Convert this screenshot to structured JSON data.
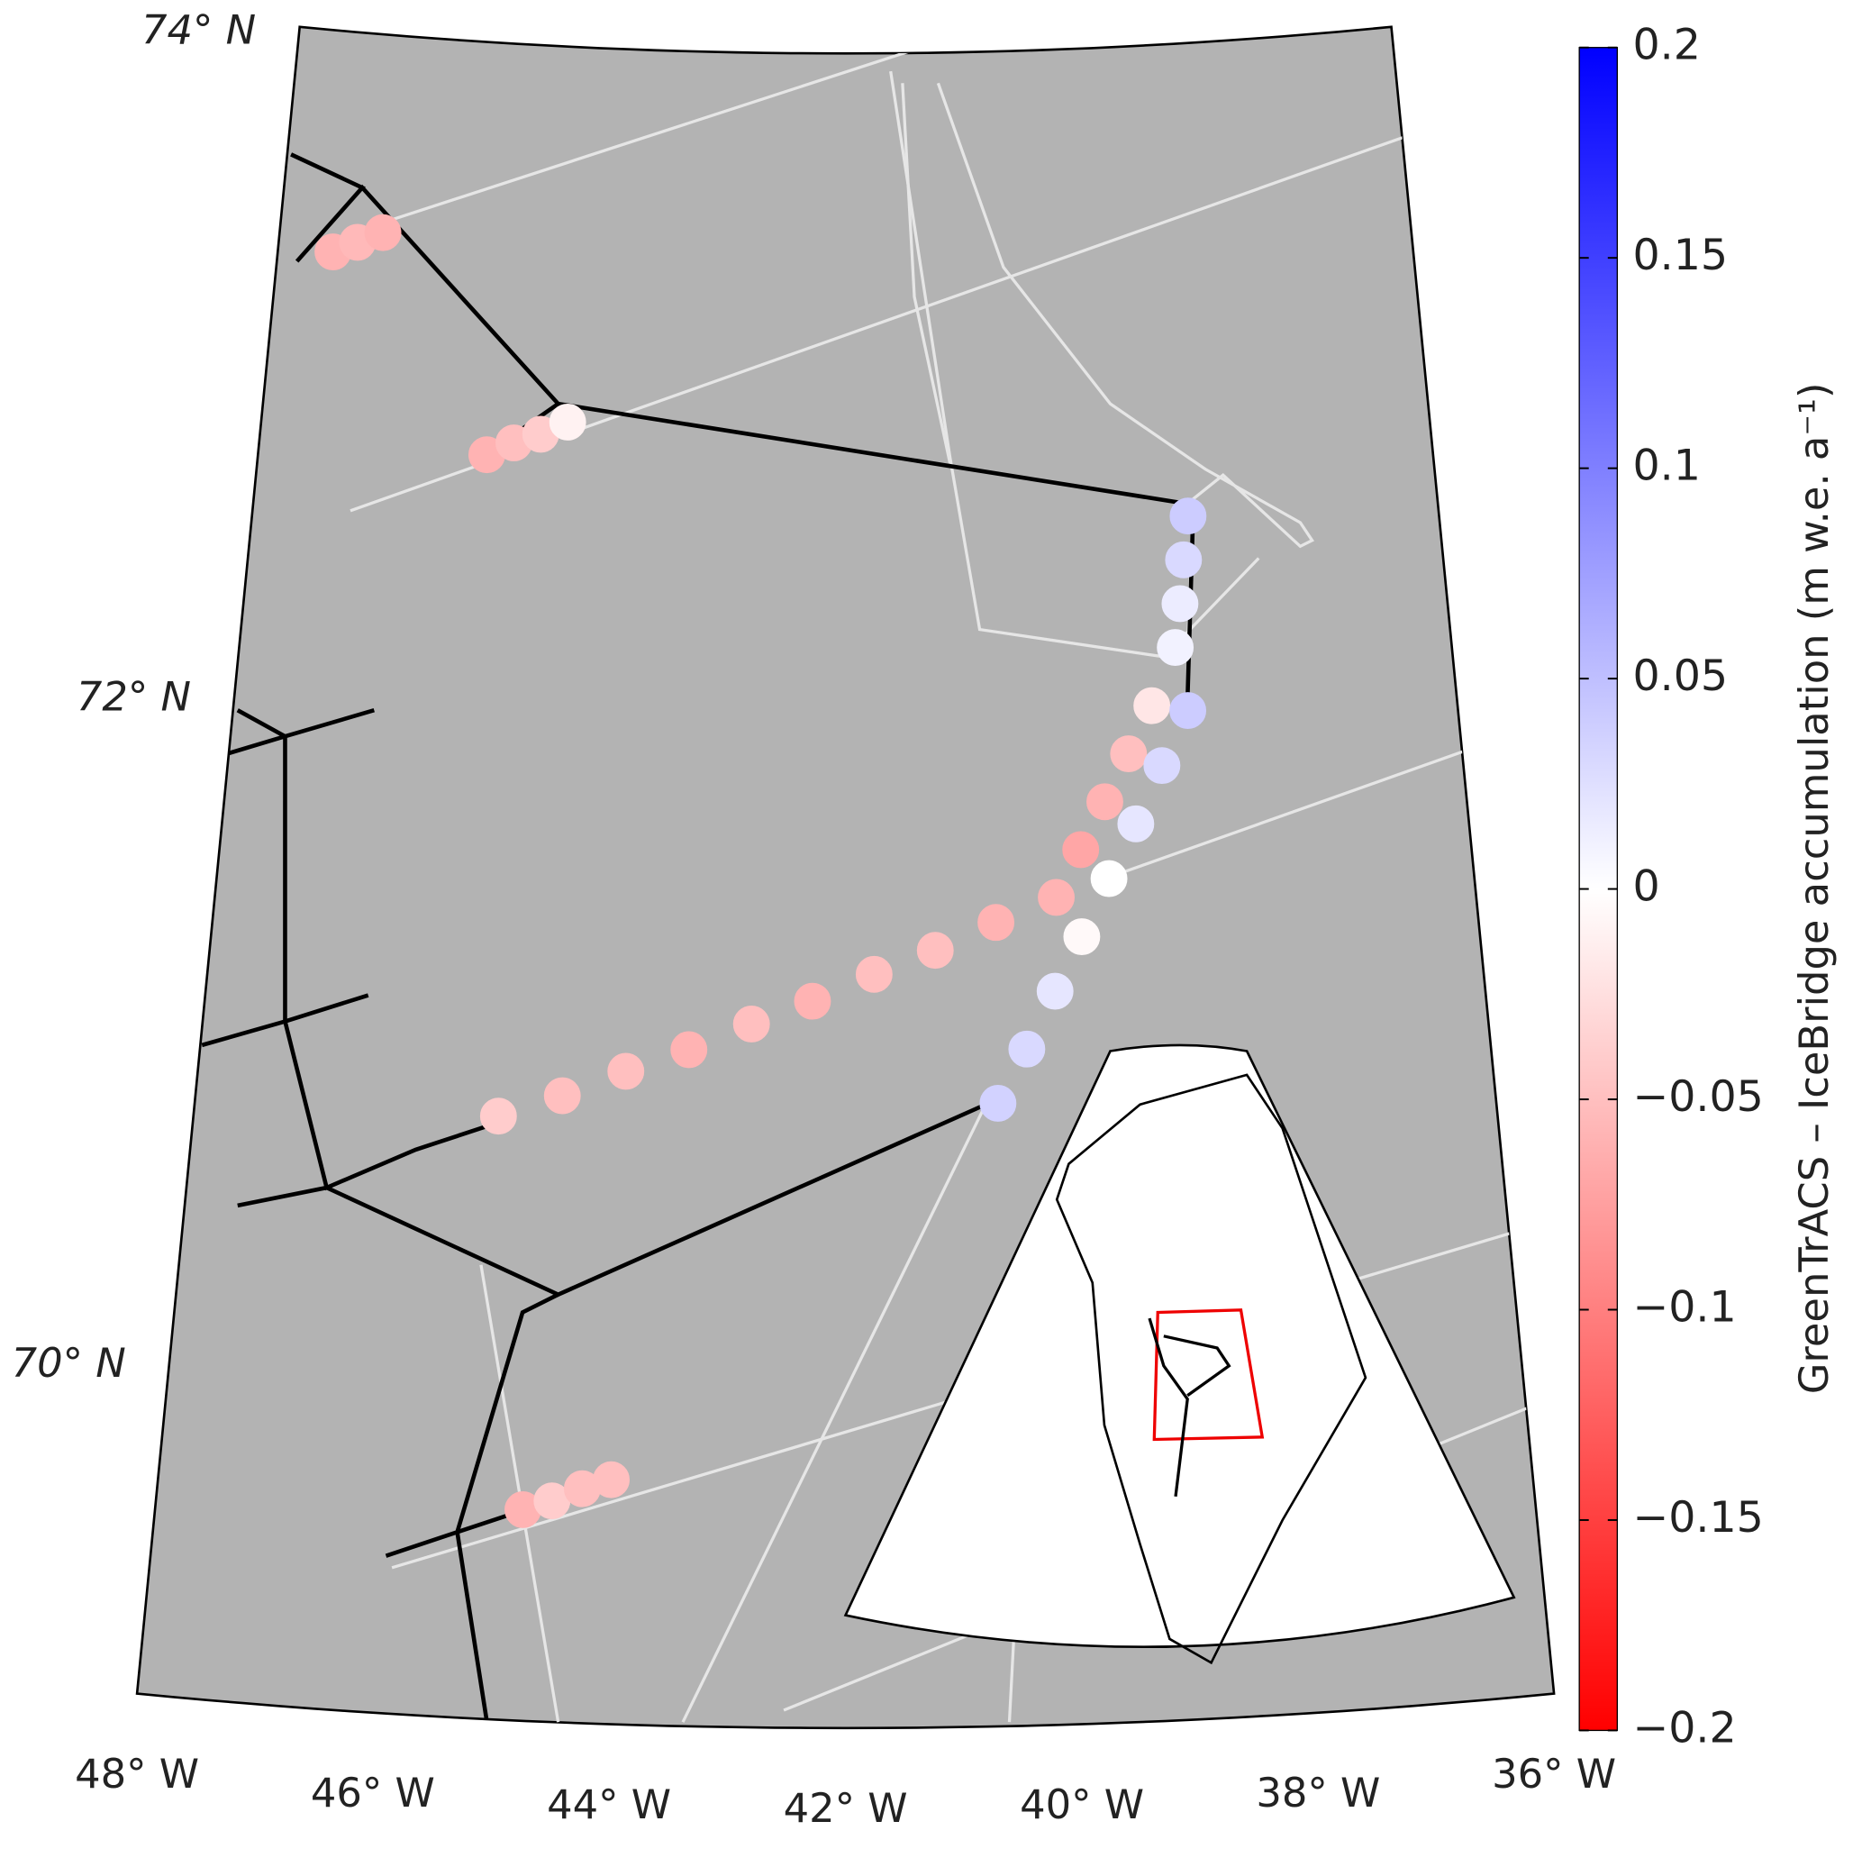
{
  "chart_data": {
    "type": "map",
    "lonlim": [
      -48,
      -36
    ],
    "latlim": [
      69,
      74
    ],
    "lonticks": [
      {
        "value": -48,
        "label": "48° W"
      },
      {
        "value": -46,
        "label": "46° W"
      },
      {
        "value": -44,
        "label": "44° W"
      },
      {
        "value": -42,
        "label": "42° W"
      },
      {
        "value": -40,
        "label": "40° W"
      },
      {
        "value": -38,
        "label": "38° W"
      },
      {
        "value": -36,
        "label": "36° W"
      }
    ],
    "latticks": [
      {
        "value": 70,
        "label": "70° N"
      },
      {
        "value": 72,
        "label": "72° N"
      },
      {
        "value": 74,
        "label": "74° N"
      }
    ],
    "colorbar": {
      "label": "GreenTrACS – IceBridge accumulation (m w.e. a⁻¹)",
      "clim": [
        -0.2,
        0.2
      ],
      "ticks": [
        {
          "value": -0.2,
          "label": "−0.2"
        },
        {
          "value": -0.15,
          "label": "−0.15"
        },
        {
          "value": -0.1,
          "label": "−0.1"
        },
        {
          "value": -0.05,
          "label": "−0.05"
        },
        0,
        0.05,
        0.1,
        0.15,
        0.2
      ],
      "colors": [
        "#ff0000",
        "#ffffff",
        "#0000ff"
      ]
    },
    "tracks": [
      {
        "lon": [
          -47.42,
          -47.17,
          -46.91
        ],
        "lat": [
          73.34,
          73.375,
          73.41
        ],
        "values": [
          -0.06,
          -0.055,
          -0.06
        ]
      },
      {
        "lon": [
          -45.67,
          -45.4,
          -45.13,
          -44.86
        ],
        "lat": [
          72.77,
          72.81,
          72.84,
          72.88
        ],
        "values": [
          -0.06,
          -0.05,
          -0.04,
          -0.01
        ]
      },
      {
        "lon": [
          -38.53,
          -38.6,
          -38.66,
          -38.73
        ],
        "lat": [
          72.59,
          72.46,
          72.33,
          72.2
        ],
        "values": [
          0.04,
          0.03,
          0.015,
          0.01
        ]
      },
      {
        "lon": [
          -45.2,
          -44.62,
          -44.04,
          -43.46,
          -42.88,
          -42.31,
          -41.73,
          -41.15,
          -40.57,
          -39.99,
          -39.74,
          -39.49,
          -39.24,
          -38.99
        ],
        "lat": [
          70.8,
          70.87,
          70.95,
          71.02,
          71.1,
          71.17,
          71.25,
          71.32,
          71.4,
          71.47,
          71.61,
          71.75,
          71.89,
          72.03
        ],
        "values": [
          -0.04,
          -0.05,
          -0.05,
          -0.06,
          -0.05,
          -0.06,
          -0.05,
          -0.05,
          -0.06,
          -0.06,
          -0.07,
          -0.06,
          -0.05,
          -0.02
        ]
      },
      {
        "lon": [
          -38.64,
          -38.92,
          -39.2,
          -39.48,
          -39.76,
          -40.03,
          -40.31,
          -40.59
        ],
        "lat": [
          72.01,
          71.85,
          71.68,
          71.52,
          71.35,
          71.19,
          71.02,
          70.86
        ],
        "values": [
          0.04,
          0.03,
          0.02,
          0.0,
          -0.005,
          0.02,
          0.03,
          0.035
        ]
      },
      {
        "lon": [
          -44.81,
          -44.56,
          -44.3,
          -44.05
        ],
        "lat": [
          69.63,
          69.66,
          69.7,
          69.73
        ],
        "values": [
          -0.06,
          -0.04,
          -0.05,
          -0.05
        ]
      }
    ]
  }
}
